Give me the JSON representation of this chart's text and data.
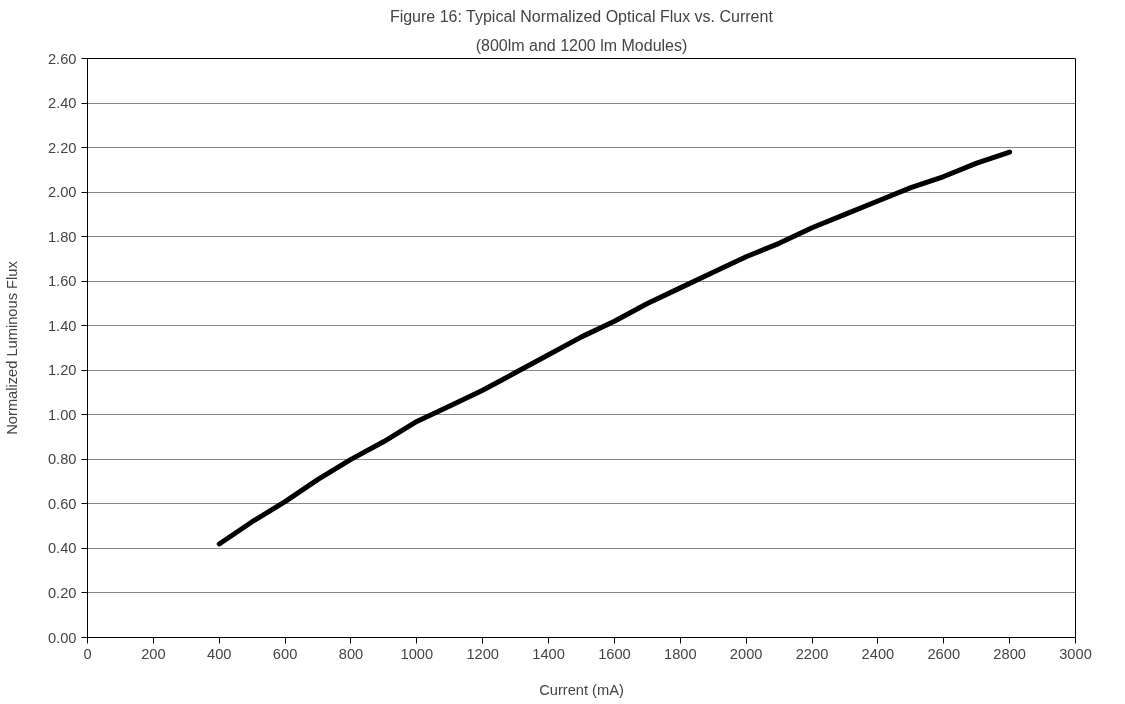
{
  "chart_data": {
    "type": "line",
    "title": "Figure 16: Typical Normalized Optical Flux vs. Current",
    "subtitle": "(800lm and 1200 lm Modules)",
    "xlabel": "Current (mA)",
    "ylabel": "Normalized Luminous Flux",
    "x": [
      400,
      500,
      600,
      700,
      800,
      900,
      1000,
      1100,
      1200,
      1300,
      1400,
      1500,
      1600,
      1700,
      1800,
      1900,
      2000,
      2100,
      2200,
      2300,
      2400,
      2500,
      2600,
      2700,
      2800
    ],
    "series": [
      {
        "color": "#000000",
        "values": [
          0.42,
          0.52,
          0.61,
          0.71,
          0.8,
          0.88,
          0.97,
          1.04,
          1.11,
          1.19,
          1.27,
          1.35,
          1.42,
          1.5,
          1.57,
          1.64,
          1.71,
          1.77,
          1.84,
          1.9,
          1.96,
          2.02,
          2.07,
          2.13,
          2.18
        ]
      }
    ],
    "xlim": [
      0,
      3000
    ],
    "xticks": [
      0,
      200,
      400,
      600,
      800,
      1000,
      1200,
      1400,
      1600,
      1800,
      2000,
      2200,
      2400,
      2600,
      2800,
      3000
    ],
    "ylim": [
      0,
      2.6
    ],
    "yticks": [
      {
        "value": 0,
        "label": "0.00"
      },
      {
        "value": 0.2,
        "label": "0.20"
      },
      {
        "value": 0.4,
        "label": "0.40"
      },
      {
        "value": 0.6,
        "label": "0.60"
      },
      {
        "value": 0.8,
        "label": "0.80"
      },
      {
        "value": 1.0,
        "label": "1.00"
      },
      {
        "value": 1.2,
        "label": "1.20"
      },
      {
        "value": 1.4,
        "label": "1.40"
      },
      {
        "value": 1.6,
        "label": "1.60"
      },
      {
        "value": 1.8,
        "label": "1.80"
      },
      {
        "value": 2.0,
        "label": "2.00"
      },
      {
        "value": 2.2,
        "label": "2.20"
      },
      {
        "value": 2.4,
        "label": "2.40"
      },
      {
        "value": 2.6,
        "label": "2.60"
      }
    ],
    "grid": "y",
    "line_style": "solid"
  }
}
